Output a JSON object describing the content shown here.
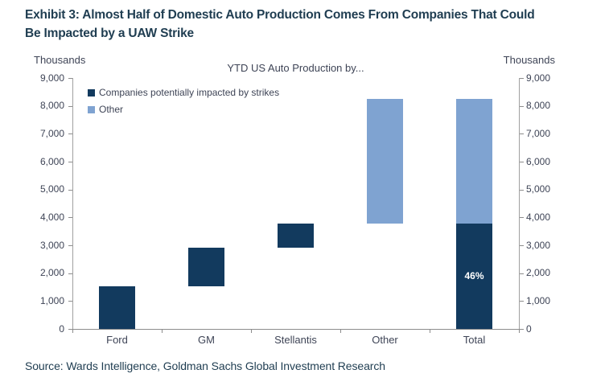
{
  "exhibit": {
    "title_lines": [
      "Exhibit 3: Almost Half of Domestic Auto Production Comes From Companies That Could",
      "Be Impacted by a UAW Strike"
    ]
  },
  "source": "Source: Wards Intelligence, Goldman Sachs Global Investment Research",
  "chart_data": {
    "type": "bar",
    "subtype": "waterfall-with-stacked-total",
    "title": "YTD US Auto Production by...",
    "axis_label_left": "Thousands",
    "axis_label_right": "Thousands",
    "y_min": 0,
    "y_max": 9000,
    "y_tick_step": 1000,
    "grid": false,
    "legend_position": "top-left-inside",
    "categories": [
      "Ford",
      "GM",
      "Stellantis",
      "Other",
      "Total"
    ],
    "legend": [
      {
        "id": "impacted",
        "label": "Companies potentially impacted by strikes",
        "color": "#123a5e"
      },
      {
        "id": "other",
        "label": "Other",
        "color": "#7fa3d1"
      }
    ],
    "bars": [
      {
        "category": "Ford",
        "segments": [
          {
            "start": 0,
            "end": 1520,
            "color": "#123a5e",
            "series": "impacted"
          }
        ]
      },
      {
        "category": "GM",
        "segments": [
          {
            "start": 1520,
            "end": 2910,
            "color": "#123a5e",
            "series": "impacted"
          }
        ]
      },
      {
        "category": "Stellantis",
        "segments": [
          {
            "start": 2910,
            "end": 3780,
            "color": "#123a5e",
            "series": "impacted"
          }
        ]
      },
      {
        "category": "Other",
        "segments": [
          {
            "start": 3780,
            "end": 8250,
            "color": "#7fa3d1",
            "series": "other"
          }
        ]
      },
      {
        "category": "Total",
        "segments": [
          {
            "start": 0,
            "end": 3780,
            "color": "#123a5e",
            "series": "impacted",
            "label": "46%"
          },
          {
            "start": 3780,
            "end": 8250,
            "color": "#7fa3d1",
            "series": "other"
          }
        ]
      }
    ],
    "colors": {
      "impacted": "#123a5e",
      "other": "#7fa3d1"
    }
  }
}
